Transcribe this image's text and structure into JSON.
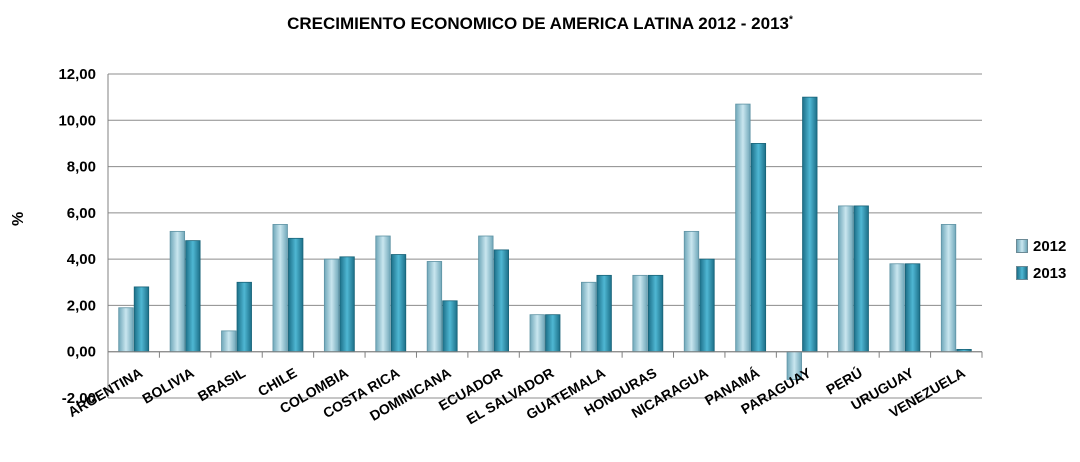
{
  "chart_data": {
    "type": "bar",
    "title": "CRECIMIENTO ECONOMICO DE AMERICA LATINA 2012 - 2013",
    "title_marker": "*",
    "ylabel": "%",
    "ylim": [
      -2,
      12
    ],
    "yticks": [
      "-2,00",
      "0,00",
      "2,00",
      "4,00",
      "6,00",
      "8,00",
      "10,00",
      "12,00"
    ],
    "grid": true,
    "legend": "right",
    "categories": [
      "ARGENTINA",
      "BOLIVIA",
      "BRASIL",
      "CHILE",
      "COLOMBIA",
      "COSTA RICA",
      "DOMINICANA",
      "ECUADOR",
      "EL SALVADOR",
      "GUATEMALA",
      "HONDURAS",
      "NICARAGUA",
      "PANAMÁ",
      "PARAGUAY",
      "PERÚ",
      "URUGUAY",
      "VENEZUELA"
    ],
    "series": [
      {
        "name": "2012",
        "color": "#8fc3d3",
        "values": [
          1.9,
          5.2,
          0.9,
          5.5,
          4.0,
          5.0,
          3.9,
          5.0,
          1.6,
          3.0,
          3.3,
          5.2,
          10.7,
          -1.2,
          6.3,
          3.8,
          5.5
        ]
      },
      {
        "name": "2013",
        "color": "#2b8aa6",
        "values": [
          2.8,
          4.8,
          3.0,
          4.9,
          4.1,
          4.2,
          2.2,
          4.4,
          1.6,
          3.3,
          3.3,
          4.0,
          9.0,
          11.0,
          6.3,
          3.8,
          0.1
        ]
      }
    ]
  }
}
